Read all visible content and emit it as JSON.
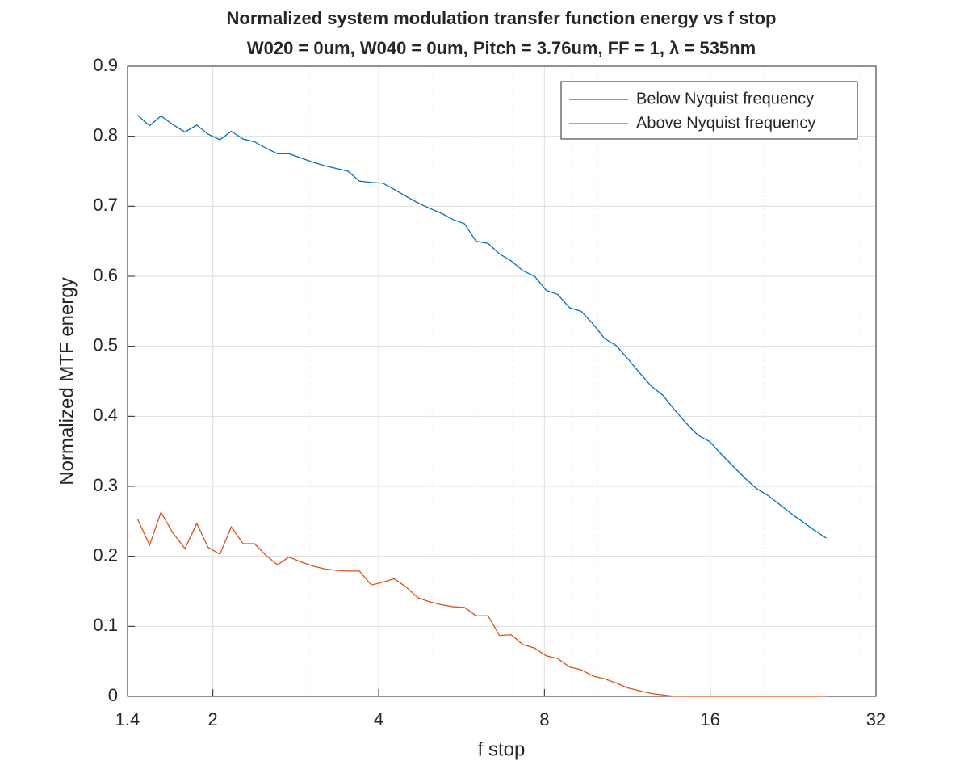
{
  "chart_data": {
    "type": "line",
    "title": "Normalized system modulation transfer function energy vs f stop",
    "subtitle": "W020 = 0um, W040 = 0um, Pitch = 3.76um, FF = 1, λ = 535nm",
    "xlabel": "f stop",
    "ylabel": "Normalized MTF energy",
    "xscale": "log",
    "xlim": [
      1.4,
      32
    ],
    "ylim": [
      0,
      0.9
    ],
    "xticks": [
      1.4,
      2,
      4,
      8,
      16,
      32
    ],
    "xminorticks": [
      3,
      5,
      6,
      7,
      9,
      10,
      20,
      30
    ],
    "yticks": [
      0,
      0.1,
      0.2,
      0.3,
      0.4,
      0.5,
      0.6,
      0.7,
      0.8,
      0.9
    ],
    "grid": true,
    "legend": "northeast",
    "x": [
      1.46,
      1.535,
      1.61,
      1.69,
      1.78,
      1.87,
      1.96,
      2.06,
      2.16,
      2.27,
      2.38,
      2.5,
      2.62,
      2.75,
      2.89,
      3.04,
      3.19,
      3.35,
      3.52,
      3.69,
      3.88,
      4.07,
      4.27,
      4.49,
      4.71,
      4.95,
      5.2,
      5.46,
      5.73,
      6.01,
      6.32,
      6.63,
      6.96,
      7.31,
      7.68,
      8.06,
      8.46,
      8.89,
      9.33,
      9.8,
      10.29,
      10.8,
      11.34,
      11.91,
      12.51,
      13.13,
      13.79,
      14.48,
      15.2,
      15.96,
      16.76,
      17.6,
      18.48,
      19.4,
      20.37,
      21.39,
      22.46,
      23.58,
      24.76,
      26.0
    ],
    "series": [
      {
        "name": "Below Nyquist frequency",
        "color": "#0072bd",
        "values": [
          0.83,
          0.815,
          0.829,
          0.817,
          0.806,
          0.816,
          0.803,
          0.795,
          0.807,
          0.796,
          0.792,
          0.783,
          0.775,
          0.775,
          0.769,
          0.763,
          0.758,
          0.754,
          0.75,
          0.736,
          0.734,
          0.733,
          0.724,
          0.714,
          0.705,
          0.697,
          0.69,
          0.681,
          0.675,
          0.65,
          0.647,
          0.632,
          0.622,
          0.608,
          0.6,
          0.58,
          0.574,
          0.555,
          0.55,
          0.532,
          0.511,
          0.501,
          0.482,
          0.462,
          0.443,
          0.43,
          0.409,
          0.39,
          0.373,
          0.364,
          0.346,
          0.329,
          0.312,
          0.297,
          0.287,
          0.274,
          0.261,
          0.249,
          0.237,
          0.226
        ]
      },
      {
        "name": "Above Nyquist frequency",
        "color": "#d95319",
        "values": [
          0.253,
          0.216,
          0.263,
          0.234,
          0.211,
          0.247,
          0.213,
          0.203,
          0.242,
          0.218,
          0.218,
          0.201,
          0.188,
          0.199,
          0.192,
          0.186,
          0.182,
          0.18,
          0.179,
          0.179,
          0.159,
          0.163,
          0.168,
          0.156,
          0.141,
          0.135,
          0.131,
          0.128,
          0.127,
          0.115,
          0.115,
          0.087,
          0.088,
          0.074,
          0.069,
          0.058,
          0.054,
          0.042,
          0.038,
          0.029,
          0.025,
          0.019,
          0.012,
          0.008,
          0.004,
          0.002,
          0,
          0,
          0,
          0,
          0,
          0,
          0,
          0,
          0,
          0,
          0,
          0,
          0,
          0
        ]
      }
    ]
  }
}
